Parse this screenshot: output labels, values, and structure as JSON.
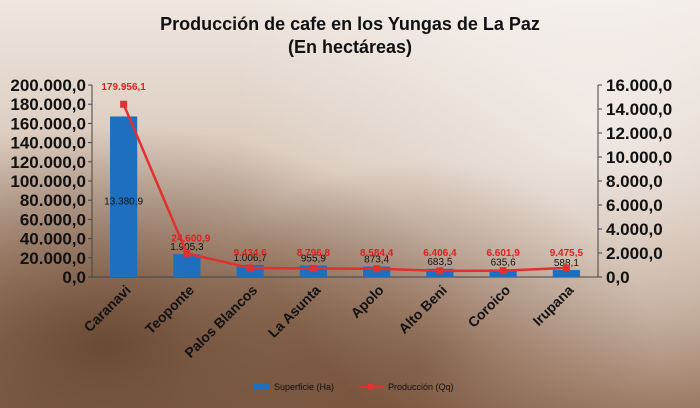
{
  "chart_data": {
    "type": "bar",
    "title": "Producción de cafe en los Yungas de La Paz",
    "subtitle": "(En hectáreas)",
    "categories": [
      "Caranavi",
      "Teoponte",
      "Palos Blancos",
      "La Asunta",
      "Apolo",
      "Alto Beni",
      "Coroico",
      "Irupana"
    ],
    "series": [
      {
        "name": "Superficie (Ha)",
        "type": "bar",
        "axis": "right",
        "color": "#1f6fbf",
        "values": [
          13380.9,
          1905.3,
          1006.7,
          955.9,
          873.4,
          683.5,
          635.6,
          588.1
        ],
        "labels": [
          "13.380,9",
          "1.905,3",
          "1.006,7",
          "955,9",
          "873,4",
          "683,5",
          "635,6",
          "588,1"
        ]
      },
      {
        "name": "Producción (Qq)",
        "type": "line",
        "axis": "left",
        "color": "#e03030",
        "values": [
          179956.1,
          24600.9,
          9434.6,
          8796.8,
          8584.4,
          6406.4,
          6601.9,
          9475.5
        ],
        "labels": [
          "179.956,1",
          "24.600,9",
          "9.434,6",
          "8.796,8",
          "8.584,4",
          "6.406,4",
          "6.601,9",
          "9.475,5"
        ]
      }
    ],
    "y_left": {
      "min": 0,
      "max": 200000,
      "step": 20000,
      "ticks": [
        "0,0",
        "20.000,0",
        "40.000,0",
        "60.000,0",
        "80.000,0",
        "100.000,0",
        "120.000,0",
        "140.000,0",
        "160.000,0",
        "180.000,0",
        "200.000,0"
      ]
    },
    "y_right": {
      "min": 0,
      "max": 16000,
      "step": 2000,
      "ticks": [
        "0,0",
        "2.000,0",
        "4.000,0",
        "6.000,0",
        "8.000,0",
        "10.000,0",
        "12.000,0",
        "14.000,0",
        "16.000,0"
      ]
    },
    "legend_position": "bottom",
    "grid": false
  }
}
